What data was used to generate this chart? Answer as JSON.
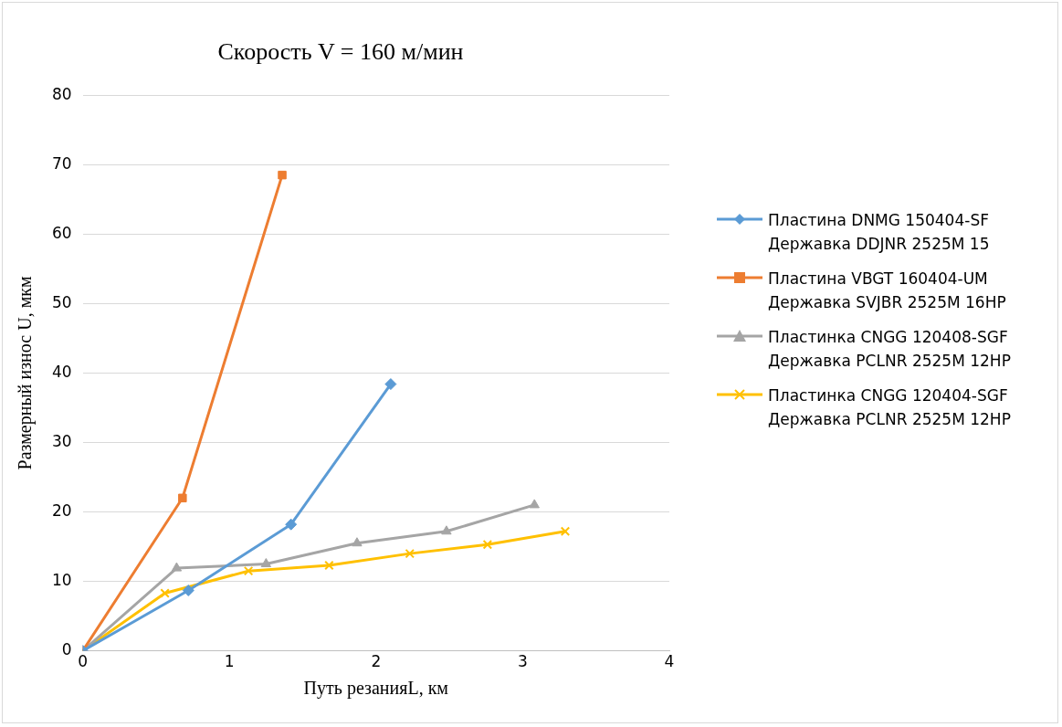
{
  "chart_data": {
    "type": "line",
    "title": "Скорость V = 160 м/мин",
    "xlabel": "Путь резанияL, км",
    "ylabel": "Размерный износ U, мкм",
    "xlim": [
      0,
      4
    ],
    "xticks": [
      0,
      1,
      2,
      3,
      4
    ],
    "ylim": [
      0,
      80
    ],
    "yticks": [
      0,
      10,
      20,
      30,
      40,
      50,
      60,
      70,
      80
    ],
    "grid": "y",
    "legend": "right",
    "series": [
      {
        "name": "Пластина DNMG 150404-SF Державка DDJNR 2525M 15",
        "color": "#5b9bd5",
        "marker": "diamond",
        "x": [
          0,
          0.72,
          1.42,
          2.1
        ],
        "values": [
          0,
          8.7,
          18.2,
          38.4
        ]
      },
      {
        "name": "Пластина VBGT 160404-UM Державка SVJBR 2525M 16HP",
        "color": "#ed7d31",
        "marker": "square",
        "x": [
          0,
          0.68,
          1.36
        ],
        "values": [
          0,
          22,
          68.5
        ]
      },
      {
        "name": "Пластинка CNGG 120408-SGF Державка PCLNR 2525M 12HP",
        "color": "#a5a5a5",
        "marker": "triangle",
        "x": [
          0,
          0.64,
          1.25,
          1.87,
          2.48,
          3.08
        ],
        "values": [
          0,
          11.9,
          12.5,
          15.5,
          17.2,
          21
        ]
      },
      {
        "name": "Пластинка CNGG 120404-SGF Державка PCLNR 2525M 12HP",
        "color": "#ffc000",
        "marker": "cross",
        "x": [
          0,
          0.56,
          1.13,
          1.68,
          2.23,
          2.76,
          3.29
        ],
        "values": [
          0,
          8.3,
          11.5,
          12.3,
          14,
          15.3,
          17.2
        ]
      }
    ]
  }
}
